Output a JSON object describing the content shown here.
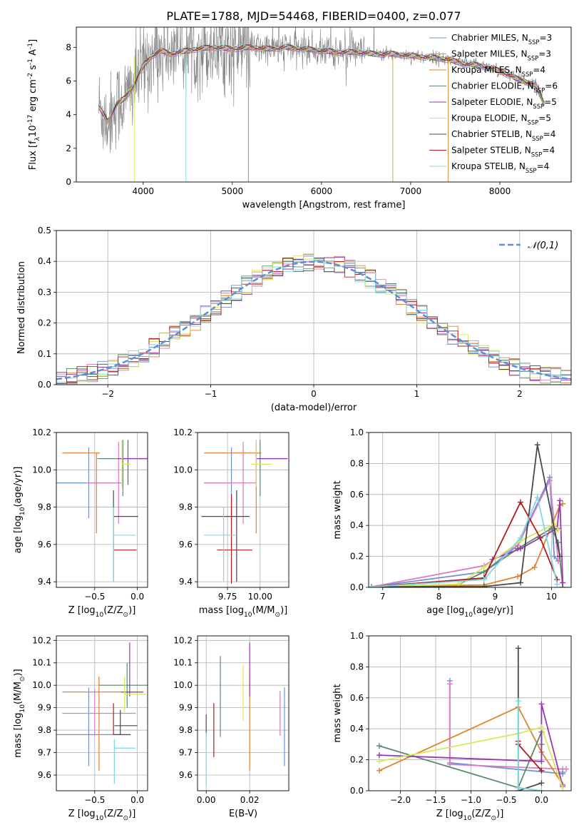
{
  "figure": {
    "title": "PLATE=1788, MJD=54468, FIBERID=0400, z=0.077"
  },
  "series_styles": [
    {
      "name": "Chabrier MILES, N$_{SSP}$=3",
      "color": "#6f8fd6"
    },
    {
      "name": "Salpeter MILES, N$_{SSP}$=3",
      "color": "#d87bc0"
    },
    {
      "name": "Kroupa MILES, N$_{SSP}$=4",
      "color": "#e0832e"
    },
    {
      "name": "Chabrier ELODIE, N$_{SSP}$=6",
      "color": "#5a8a6a"
    },
    {
      "name": "Salpeter ELODIE, N$_{SSP}$=5",
      "color": "#9b36b0"
    },
    {
      "name": "Kroupa ELODIE, N$_{SSP}$=5",
      "color": "#d6e85a"
    },
    {
      "name": "Chabrier STELIB, N$_{SSP}$=4",
      "color": "#4a4a4a"
    },
    {
      "name": "Salpeter STELIB, N$_{SSP}$=4",
      "color": "#b01c1c"
    },
    {
      "name": "Kroupa STELIB, N$_{SSP}$=4",
      "color": "#7fd8e0"
    }
  ],
  "chart_data": [
    {
      "id": "spectrum",
      "type": "line",
      "xlabel": "wavelength [Angstrom, rest frame]",
      "ylabel": "Flux [f$_λ$10$^{-17}$ erg cm$^{-2}$ s$^{-1}$ A$^{-1}$]",
      "xlim": [
        3250,
        8800
      ],
      "ylim": [
        0,
        9.2
      ],
      "xticks": [
        4000,
        5000,
        6000,
        7000,
        8000
      ],
      "yticks": [
        0,
        2,
        4,
        6,
        8
      ],
      "grid": false,
      "legend": "top-right",
      "legend_entries": [
        "Chabrier MILES, N$_{SSP}$=3",
        "Salpeter MILES, N$_{SSP}$=3",
        "Kroupa MILES, N$_{SSP}$=4",
        "Chabrier ELODIE, N$_{SSP}$=6",
        "Salpeter ELODIE, N$_{SSP}$=5",
        "Kroupa ELODIE, N$_{SSP}$=5",
        "Chabrier STELIB, N$_{SSP}$=4",
        "Salpeter STELIB, N$_{SSP}$=4",
        "Kroupa STELIB, N$_{SSP}$=4"
      ],
      "continuum": {
        "x": [
          3500,
          3600,
          3700,
          3800,
          3900,
          4000,
          4100,
          4200,
          4300,
          4400,
          4500,
          4600,
          4800,
          5000,
          5200,
          5400,
          5600,
          5800,
          6000,
          6200,
          6400,
          6600,
          6800,
          7000,
          7200,
          7400,
          7600,
          7800,
          8000,
          8200,
          8400,
          8500
        ],
        "y": [
          4.5,
          3.6,
          4.6,
          5.0,
          5.8,
          6.9,
          7.5,
          7.8,
          7.6,
          7.7,
          7.8,
          7.9,
          8.0,
          7.9,
          8.0,
          7.9,
          8.0,
          7.9,
          7.8,
          7.7,
          7.7,
          7.6,
          7.6,
          7.5,
          7.4,
          7.3,
          7.0,
          6.9,
          6.6,
          6.1,
          5.8,
          4.6
        ]
      }
    },
    {
      "id": "residuals",
      "type": "line",
      "xlabel": "(data-model)/error",
      "ylabel": "Normed distribution",
      "xlim": [
        -2.5,
        2.5
      ],
      "ylim": [
        0,
        0.5
      ],
      "xticks": [
        -2,
        -1,
        0,
        1,
        2
      ],
      "yticks": [
        0.0,
        0.1,
        0.2,
        0.3,
        0.4,
        0.5
      ],
      "grid": true,
      "legend": "top-right",
      "legend_entries": [
        "$\\mathcal{N}(0,1)$"
      ],
      "gaussian": {
        "mean": 0,
        "sigma": 1,
        "color": "#5b8fd6"
      },
      "histogram_bin_width": 0.1
    },
    {
      "id": "age-vs-Z",
      "type": "scatter",
      "xlabel": "Z [log$_{10}$(Z/Z$_⊙$)]",
      "ylabel": "age  [log$_{10}$(age/yr)]",
      "xlim": [
        -0.95,
        0.12
      ],
      "ylim": [
        9.37,
        10.2
      ],
      "xticks": [
        -0.5,
        0.0
      ],
      "yticks": [
        9.4,
        9.6,
        9.8,
        10.0,
        10.2
      ],
      "grid": true,
      "points": [
        {
          "x": -0.57,
          "y": 9.93,
          "xerr": [
            0.38,
            0.38
          ],
          "yerr": [
            0.19,
            0.19
          ]
        },
        {
          "x": -0.22,
          "y": 9.93,
          "xerr": [
            0.38,
            0.0
          ],
          "yerr": [
            0.22,
            0.22
          ]
        },
        {
          "x": -0.48,
          "y": 10.09,
          "xerr": [
            0.4,
            0.04
          ],
          "yerr": [
            0.43,
            0.0
          ]
        },
        {
          "x": -0.17,
          "y": 10.06,
          "xerr": [
            0.3,
            0.27
          ],
          "yerr": [
            0.2,
            0.1
          ]
        },
        {
          "x": -0.11,
          "y": 10.06,
          "xerr": [
            0.12,
            0.24
          ],
          "yerr": [
            0.14,
            0.1
          ]
        },
        {
          "x": -0.18,
          "y": 10.03,
          "xerr": [
            0.0,
            0.1
          ],
          "yerr": [
            0.12,
            0.13
          ]
        },
        {
          "x": -0.28,
          "y": 9.75,
          "xerr": [
            0.0,
            0.29
          ],
          "yerr": [
            0.35,
            0.14
          ]
        },
        {
          "x": -0.28,
          "y": 9.57,
          "xerr": [
            0.0,
            0.27
          ],
          "yerr": [
            0.0,
            0.0
          ]
        },
        {
          "x": -0.28,
          "y": 9.65,
          "xerr": [
            0.0,
            0.26
          ],
          "yerr": [
            0.25,
            0.15
          ]
        }
      ]
    },
    {
      "id": "age-vs-mass",
      "type": "scatter",
      "xlabel": "mass [log$_{10}$(M/M$_⊙$)]",
      "ylabel": "",
      "xlim": [
        9.52,
        10.22
      ],
      "ylim": [
        9.37,
        10.2
      ],
      "xticks": [
        9.75,
        10.0
      ],
      "yticks": [
        9.4,
        9.6,
        9.8,
        10.0,
        10.2
      ],
      "grid": true,
      "points": [
        {
          "x": 9.78,
          "y": 9.93,
          "xerr": [
            0.21,
            0.0
          ],
          "yerr": [
            0.19,
            0.19
          ]
        },
        {
          "x": 9.87,
          "y": 9.93,
          "xerr": [
            0.3,
            0.1
          ],
          "yerr": [
            0.22,
            0.22
          ]
        },
        {
          "x": 9.97,
          "y": 10.09,
          "xerr": [
            0.4,
            0.04
          ],
          "yerr": [
            0.43,
            0.0
          ]
        },
        {
          "x": 10.0,
          "y": 10.06,
          "xerr": [
            0.0,
            0.21
          ],
          "yerr": [
            0.2,
            0.1
          ]
        },
        {
          "x": 9.97,
          "y": 10.06,
          "xerr": [
            0.0,
            0.24
          ],
          "yerr": [
            0.14,
            0.1
          ]
        },
        {
          "x": 9.97,
          "y": 10.03,
          "xerr": [
            0.04,
            0.12
          ],
          "yerr": [
            0.12,
            0.13
          ]
        },
        {
          "x": 9.82,
          "y": 9.75,
          "xerr": [
            0.27,
            0.1
          ],
          "yerr": [
            0.35,
            0.14
          ]
        },
        {
          "x": 9.78,
          "y": 9.57,
          "xerr": [
            0.11,
            0.16
          ],
          "yerr": [
            0.18,
            0.3
          ]
        },
        {
          "x": 9.72,
          "y": 9.65,
          "xerr": [
            0.15,
            0.1
          ],
          "yerr": [
            0.25,
            0.15
          ]
        }
      ]
    },
    {
      "id": "weight-vs-age",
      "type": "line",
      "xlabel": "age  [log$_{10}$(age/yr)]",
      "ylabel": "mass weight",
      "xlim": [
        6.75,
        10.35
      ],
      "ylim": [
        0,
        1.0
      ],
      "xticks": [
        7,
        8,
        9,
        10
      ],
      "yticks": [
        0.0,
        0.2,
        0.4,
        0.6,
        0.8,
        1.0
      ],
      "grid": true,
      "series": [
        {
          "x": [
            6.8,
            8.8,
            9.4,
            9.97,
            10.05,
            10.12
          ],
          "y": [
            0.003,
            0.1,
            0.27,
            0.71,
            0.2,
            0.17
          ]
        },
        {
          "x": [
            6.8,
            8.8,
            9.4,
            9.97,
            10.12
          ],
          "y": [
            0.003,
            0.14,
            0.27,
            0.69,
            0.17
          ]
        },
        {
          "x": [
            6.8,
            8.8,
            9.4,
            9.7,
            10.15,
            10.2
          ],
          "y": [
            0.003,
            0.015,
            0.07,
            0.13,
            0.53,
            0.54
          ]
        },
        {
          "x": [
            6.8,
            8.35,
            8.8,
            9.4,
            10.0,
            10.12,
            10.2
          ],
          "y": [
            0.003,
            0.02,
            0.1,
            0.25,
            0.38,
            0.29,
            0.0
          ]
        },
        {
          "x": [
            6.8,
            8.8,
            8.95,
            9.45,
            10.1,
            10.15,
            10.2
          ],
          "y": [
            0.003,
            0.06,
            0.18,
            0.25,
            0.38,
            0.56,
            0.03
          ]
        },
        {
          "x": [
            6.8,
            8.35,
            8.8,
            9.45,
            10.05,
            10.12
          ],
          "y": [
            0.003,
            0.02,
            0.13,
            0.3,
            0.41,
            0.37
          ]
        },
        {
          "x": [
            6.8,
            8.8,
            9.45,
            9.75,
            10.15
          ],
          "y": [
            0.003,
            0.005,
            0.03,
            0.92,
            0.2
          ]
        },
        {
          "x": [
            6.8,
            8.8,
            9.45,
            9.8,
            10.1
          ],
          "y": [
            0.003,
            0.06,
            0.55,
            0.32,
            0.05
          ]
        },
        {
          "x": [
            6.8,
            8.8,
            9.45,
            9.75,
            10.1
          ],
          "y": [
            0.003,
            0.05,
            0.32,
            0.58,
            0.02
          ]
        }
      ]
    },
    {
      "id": "mass-vs-Z",
      "type": "scatter",
      "xlabel": "Z [log$_{10}$(Z/Z$_⊙$)]",
      "ylabel": "mass [log$_{10}$(M/M$_⊙$)]",
      "xlim": [
        -0.95,
        0.12
      ],
      "ylim": [
        9.53,
        10.22
      ],
      "xticks": [
        -0.5,
        0.0
      ],
      "yticks": [
        9.6,
        9.7,
        9.8,
        9.9,
        10.0,
        10.1,
        10.2
      ],
      "grid": true,
      "points": [
        {
          "x": -0.57,
          "y": 9.78,
          "xerr": [
            0.38,
            0.36
          ],
          "yerr": [
            0.14,
            0.21
          ]
        },
        {
          "x": -0.5,
          "y": 9.875,
          "xerr": [
            0.38,
            0.48
          ],
          "yerr": [
            0.1,
            0.11
          ]
        },
        {
          "x": -0.45,
          "y": 9.97,
          "xerr": [
            0.43,
            0.5
          ],
          "yerr": [
            0.35,
            0.07
          ]
        },
        {
          "x": -0.12,
          "y": 10.0,
          "xerr": [
            0.33,
            0.3
          ],
          "yerr": [
            0.1,
            0.1
          ]
        },
        {
          "x": -0.09,
          "y": 9.97,
          "xerr": [
            0.1,
            0.16
          ],
          "yerr": [
            0.02,
            0.22
          ]
        },
        {
          "x": -0.15,
          "y": 9.96,
          "xerr": [
            0.0,
            0.25
          ],
          "yerr": [
            0.08,
            0.08
          ]
        },
        {
          "x": -0.2,
          "y": 9.82,
          "xerr": [
            0.07,
            0.2
          ],
          "yerr": [
            0.04,
            0.07
          ]
        },
        {
          "x": -0.28,
          "y": 9.78,
          "xerr": [
            0.0,
            0.2
          ],
          "yerr": [
            0.0,
            0.14
          ]
        },
        {
          "x": -0.27,
          "y": 9.72,
          "xerr": [
            0.0,
            0.25
          ],
          "yerr": [
            0.16,
            0.04
          ]
        }
      ]
    },
    {
      "id": "mass-vs-EBV",
      "type": "scatter",
      "xlabel": "E(B-V)",
      "ylabel": "",
      "xlim": [
        -0.004,
        0.038
      ],
      "ylim": [
        9.53,
        10.22
      ],
      "xticks": [
        0.0,
        0.02
      ],
      "yticks": [
        9.6,
        9.7,
        9.8,
        9.9,
        10.0,
        10.1,
        10.2
      ],
      "grid": true,
      "points": [
        {
          "x": 0.036,
          "y": 9.82,
          "yerr": [
            0.18,
            0.17
          ]
        },
        {
          "x": 0.034,
          "y": 9.875,
          "yerr": [
            0.1,
            0.1
          ]
        },
        {
          "x": 0.02,
          "y": 9.97,
          "yerr": [
            0.35,
            0.07
          ]
        },
        {
          "x": 0.0065,
          "y": 9.95,
          "yerr": [
            0.18,
            0.18
          ]
        },
        {
          "x": 0.02,
          "y": 10.07,
          "yerr": [
            0.12,
            0.12
          ]
        },
        {
          "x": 0.017,
          "y": 9.97,
          "yerr": [
            0.13,
            0.12
          ]
        },
        {
          "x": 0.0,
          "y": 9.82,
          "yerr": [
            0.04,
            0.05
          ]
        },
        {
          "x": 0.0035,
          "y": 9.8,
          "yerr": [
            0.12,
            0.12
          ]
        },
        {
          "x": 0.0,
          "y": 9.72,
          "yerr": [
            0.17,
            0.07
          ]
        }
      ]
    },
    {
      "id": "weight-vs-Z",
      "type": "line",
      "xlabel": "Z [log$_{10}$(Z/Z$_⊙$)]",
      "ylabel": "mass weight",
      "xlim": [
        -2.45,
        0.42
      ],
      "ylim": [
        0,
        1.0
      ],
      "xticks": [
        -2.0,
        -1.5,
        -1.0,
        -0.5,
        0.0
      ],
      "yticks": [
        0.0,
        0.2,
        0.4,
        0.6,
        0.8,
        1.0
      ],
      "grid": true,
      "series": [
        {
          "x": [
            -1.3,
            -1.3,
            0.3,
            0.3
          ],
          "y": [
            0.71,
            0.18,
            0.11,
            0.12
          ]
        },
        {
          "x": [
            -1.3,
            -1.3,
            0.3,
            0.35
          ],
          "y": [
            0.69,
            0.17,
            0.14,
            0.14
          ]
        },
        {
          "x": [
            -2.3,
            -0.33,
            0.0,
            0.3
          ],
          "y": [
            0.13,
            0.54,
            0.25,
            0.04
          ]
        },
        {
          "x": [
            -2.3,
            -0.33,
            0.0,
            0.0
          ],
          "y": [
            0.29,
            0.02,
            0.38,
            0.3
          ]
        },
        {
          "x": [
            -2.3,
            0.0,
            0.0,
            0.3
          ],
          "y": [
            0.23,
            0.19,
            0.56,
            0.03
          ]
        },
        {
          "x": [
            -2.3,
            -0.33,
            0.0,
            0.3
          ],
          "y": [
            0.19,
            0.37,
            0.41,
            0.02
          ]
        },
        {
          "x": [
            -0.33,
            -0.33,
            0.0
          ],
          "y": [
            0.92,
            0.0,
            0.05
          ]
        },
        {
          "x": [
            -0.33,
            -0.33,
            0.0
          ],
          "y": [
            0.32,
            0.3,
            0.13
          ]
        },
        {
          "x": [
            -0.33,
            -0.33,
            0.0
          ],
          "y": [
            0.58,
            0.02,
            0.0
          ]
        }
      ]
    }
  ]
}
